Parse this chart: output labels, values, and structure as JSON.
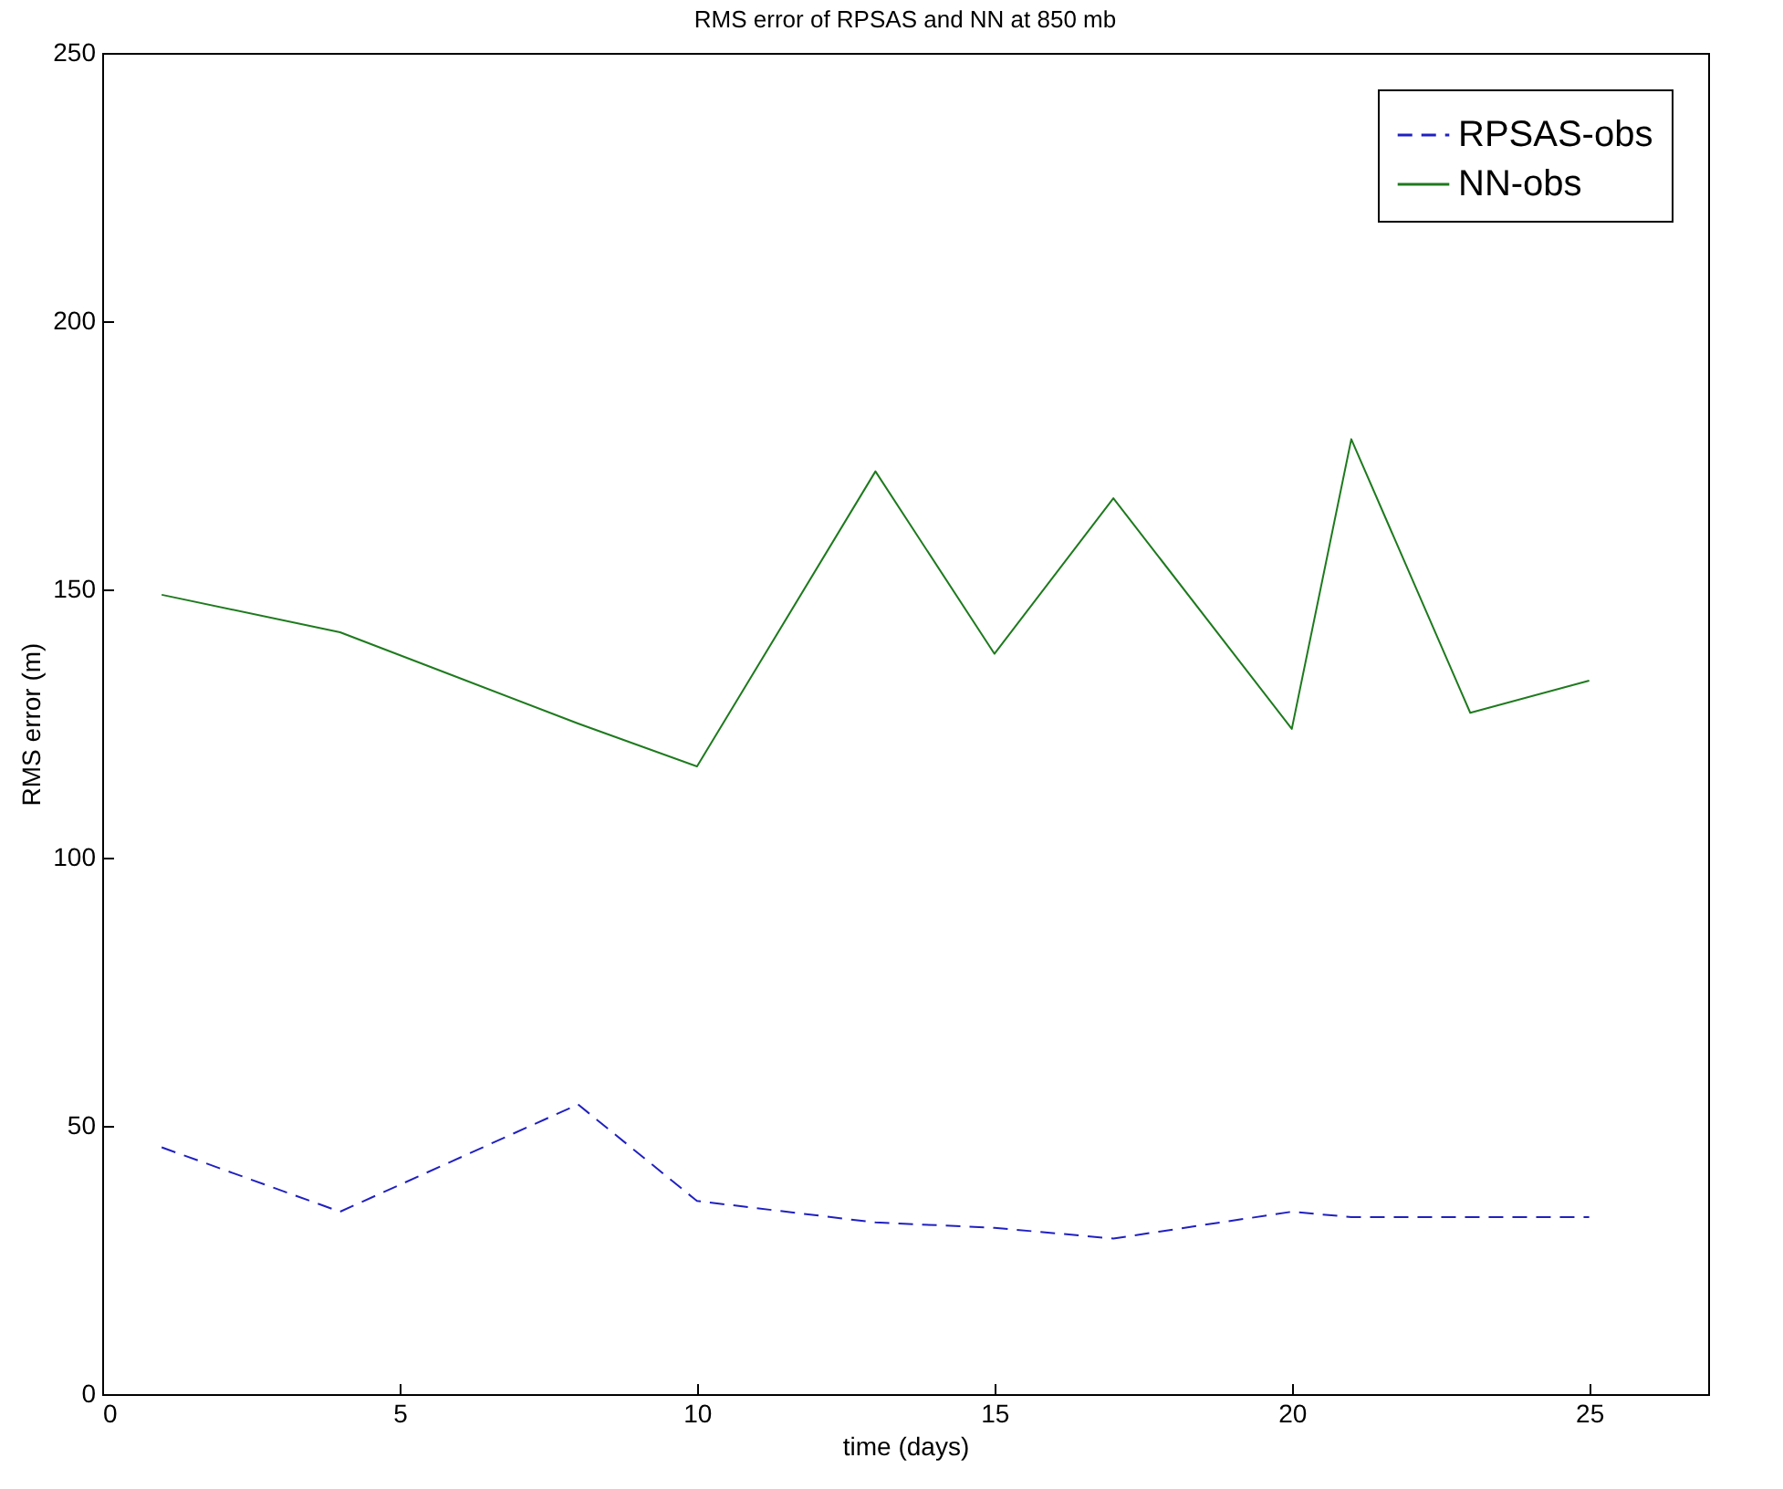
{
  "chart_data": {
    "type": "line",
    "title": "RMS error of RPSAS and NN at 850 mb",
    "xlabel": "time (days)",
    "ylabel": "RMS error (m)",
    "x": [
      1,
      4,
      8,
      10,
      13,
      15,
      17,
      20,
      21,
      23,
      25
    ],
    "series": [
      {
        "name": "RPSAS-obs",
        "color": "#2020c0",
        "line_style": "dashed",
        "values": [
          46,
          34,
          54,
          36,
          32,
          31,
          29,
          34,
          33,
          33,
          33
        ]
      },
      {
        "name": "NN-obs",
        "color": "#1e7a1e",
        "line_style": "solid",
        "values": [
          149,
          142,
          125,
          117,
          172,
          138,
          167,
          124,
          178,
          127,
          133
        ]
      }
    ],
    "xlim": [
      0,
      27
    ],
    "xticks": [
      0,
      5,
      10,
      15,
      20,
      25
    ],
    "ylim": [
      0,
      250
    ],
    "yticks": [
      0,
      50,
      100,
      150,
      200,
      250
    ],
    "grid": false,
    "legend": "top right",
    "marker": "none"
  }
}
